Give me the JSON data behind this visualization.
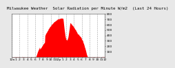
{
  "title": "Milwaukee Weather  Solar Radiation per Minute W/m2  (Last 24 Hours)",
  "bg_color": "#e8e8e8",
  "plot_bg_color": "#ffffff",
  "area_color": "#ff0000",
  "grid_color": "#888888",
  "text_color": "#000000",
  "ylim": [
    0,
    800
  ],
  "yticks": [
    100,
    200,
    300,
    400,
    500,
    600,
    700,
    800
  ],
  "num_points": 1440,
  "x_tick_labels": [
    "12a",
    "1",
    "2",
    "3",
    "4",
    "5",
    "6",
    "7",
    "8",
    "9",
    "10",
    "11",
    "12p",
    "1",
    "2",
    "3",
    "4",
    "5",
    "6",
    "7",
    "8",
    "9",
    "10",
    "11",
    "12"
  ],
  "title_fontsize": 4.2,
  "axis_fontsize": 3.2,
  "sunrise": 6.2,
  "sunset": 19.5,
  "peak_hour": 11.8,
  "peak_value": 720
}
